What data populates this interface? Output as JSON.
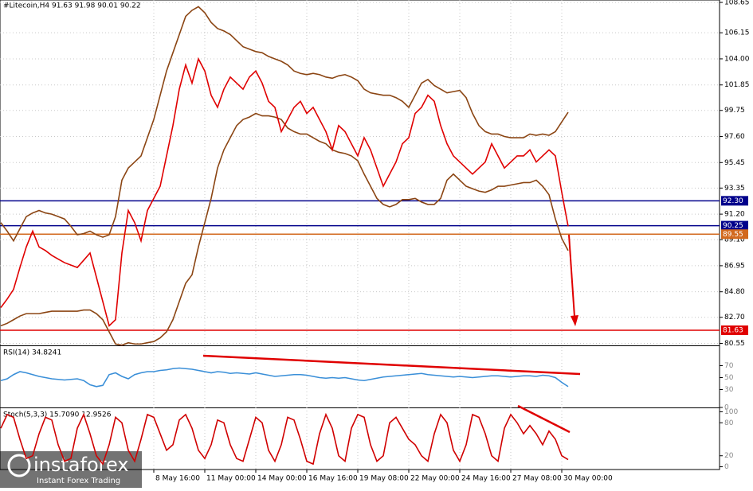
{
  "chart_data": [
    {
      "type": "line",
      "title": "#Litecoin,H4  91.63 91.98 90.01 90.22",
      "categories": [
        null,
        null,
        null,
        null,
        null,
        null,
        null,
        null,
        null,
        null,
        null,
        null,
        null,
        null,
        null,
        null,
        null,
        null,
        null,
        null,
        null,
        null,
        null,
        null,
        "8 May 16:00",
        null,
        null,
        null,
        null,
        null,
        null,
        null,
        "11 May 00:00",
        null,
        null,
        null,
        null,
        null,
        null,
        null,
        "14 May 00:00",
        null,
        null,
        null,
        null,
        null,
        null,
        null,
        "16 May 16:00",
        null,
        null,
        null,
        null,
        null,
        null,
        null,
        "19 May 08:00",
        null,
        null,
        null,
        null,
        null,
        null,
        null,
        "22 May 00:00",
        null,
        null,
        null,
        null,
        null,
        null,
        null,
        "24 May 16:00",
        null,
        null,
        null,
        null,
        null,
        null,
        null,
        "27 May 08:00",
        null,
        null,
        null,
        null,
        null,
        null,
        null,
        "30 May 00:00",
        null
      ],
      "series": [
        {
          "color": "#8b4513",
          "values": [
            90.5,
            89.8,
            89,
            90,
            91,
            91.3,
            91.5,
            91.3,
            91.2,
            91,
            90.8,
            90.2,
            89.5,
            89.6,
            89.8,
            89.5,
            89.3,
            89.5,
            91,
            94,
            95,
            95.5,
            96,
            97.5,
            99,
            101,
            103,
            104.5,
            106,
            107.5,
            108,
            108.3,
            107.8,
            107,
            106.5,
            106.3,
            106,
            105.5,
            105,
            104.8,
            104.6,
            104.5,
            104.2,
            104,
            103.8,
            103.5,
            103,
            102.8,
            102.7,
            102.8,
            102.7,
            102.5,
            102.4,
            102.6,
            102.7,
            102.5,
            102.2,
            101.5,
            101.2,
            101.1,
            101,
            101,
            100.8,
            100.5,
            100,
            101,
            102,
            102.3,
            101.8,
            101.5,
            101.2,
            101.3,
            101.4,
            100.8,
            99.5,
            98.5,
            98,
            97.8,
            97.8,
            97.6,
            97.5,
            97.5,
            97.5,
            97.8,
            97.7,
            97.8,
            97.7,
            98,
            98.8,
            99.6
          ]
        },
        {
          "color": "#8b4513",
          "values": [
            82,
            82.2,
            82.5,
            82.8,
            83,
            83,
            83,
            83.1,
            83.2,
            83.2,
            83.2,
            83.2,
            83.2,
            83.3,
            83.3,
            83,
            82.5,
            81.5,
            80.5,
            80.4,
            80.6,
            80.5,
            80.5,
            80.6,
            80.7,
            81,
            81.5,
            82.5,
            84,
            85.5,
            86.2,
            88.5,
            90.5,
            92.5,
            95,
            96.5,
            97.5,
            98.5,
            99,
            99.2,
            99.5,
            99.3,
            99.3,
            99.2,
            99,
            98.3,
            98,
            97.8,
            97.8,
            97.5,
            97.2,
            97,
            96.5,
            96.3,
            96.2,
            96,
            95.6,
            94.5,
            93.5,
            92.5,
            92,
            91.8,
            92,
            92.4,
            92.4,
            92.5,
            92.2,
            92,
            92,
            92.5,
            94,
            94.5,
            94,
            93.5,
            93.3,
            93.1,
            93,
            93.2,
            93.5,
            93.5,
            93.6,
            93.7,
            93.8,
            93.8,
            94,
            93.5,
            92.8,
            90.8,
            89.2,
            88.2
          ]
        },
        {
          "color": "#e00000",
          "values": [
            83.5,
            84.2,
            85,
            86.8,
            88.5,
            89.8,
            88.5,
            88.2,
            87.8,
            87.5,
            87.2,
            87,
            86.8,
            87.4,
            88,
            86,
            84,
            82,
            82.5,
            88,
            91.5,
            90.5,
            89,
            91.5,
            92.5,
            93.5,
            96,
            98.5,
            101.5,
            103.5,
            102,
            104,
            103,
            101,
            100,
            101.5,
            102.5,
            102,
            101.5,
            102.5,
            103,
            102,
            100.5,
            100,
            98,
            99,
            100,
            100.5,
            99.5,
            100,
            99,
            98,
            96.5,
            98.5,
            98,
            97,
            96,
            97.5,
            96.5,
            95,
            93.5,
            94.5,
            95.5,
            97,
            97.5,
            99.5,
            100,
            101,
            100.5,
            98.5,
            97,
            96,
            95.5,
            95,
            94.5,
            95,
            95.5,
            97,
            96,
            95,
            95.5,
            96,
            96,
            96.5,
            95.5,
            96,
            96.5,
            96,
            93,
            90.2
          ]
        }
      ],
      "ylim": [
        80.45,
        108.85
      ],
      "yticks": [
        108.65,
        106.15,
        {
          "value": 104,
          "label": "104.00"
        },
        101.85,
        99.75,
        {
          "value": 97.6,
          "label": "97.60"
        },
        95.45,
        93.35,
        {
          "value": 91.2,
          "label": "91.20"
        },
        {
          "value": 89.1,
          "label": "89.10"
        },
        86.95,
        {
          "value": 84.8,
          "label": "84.80"
        },
        {
          "value": 82.7,
          "label": "82.70"
        },
        80.55
      ],
      "levels": [
        {
          "value": 92.3,
          "label": "92.30",
          "color": "#00008b"
        },
        {
          "value": 90.25,
          "color": "#00008b"
        },
        {
          "value": 89.55,
          "color": "#d2691e"
        },
        {
          "value": 81.63,
          "color": "#e00000"
        }
      ],
      "grid": true
    },
    {
      "type": "line",
      "title": "RSI(14) 34.8241",
      "series": [
        {
          "color": "#3a8fd8",
          "values": [
            45,
            48,
            55,
            60,
            58,
            55,
            52,
            50,
            48,
            47,
            46,
            47,
            48,
            45,
            38,
            35,
            37,
            55,
            58,
            52,
            48,
            55,
            58,
            60,
            60,
            62,
            63,
            65,
            66,
            65,
            64,
            62,
            60,
            58,
            60,
            59,
            57,
            58,
            57,
            56,
            58,
            56,
            54,
            52,
            53,
            54,
            55,
            55,
            54,
            52,
            50,
            49,
            50,
            49,
            50,
            48,
            46,
            45,
            47,
            49,
            51,
            52,
            53,
            54,
            55,
            56,
            57,
            55,
            54,
            53,
            52,
            51,
            52,
            51,
            50,
            51,
            52,
            53,
            53,
            52,
            51,
            52,
            53,
            53,
            52,
            54,
            53,
            50,
            42,
            35
          ]
        }
      ],
      "ylim": [
        0,
        100
      ],
      "yticks": [
        70,
        50,
        30,
        0
      ]
    },
    {
      "type": "line",
      "title": "Stoch(5,3,3) 15.7090 12.9526",
      "series": [
        {
          "color": "#d00000",
          "values": [
            70,
            95,
            90,
            50,
            15,
            20,
            60,
            90,
            85,
            40,
            10,
            15,
            70,
            95,
            60,
            20,
            5,
            40,
            90,
            80,
            30,
            10,
            50,
            95,
            90,
            60,
            30,
            40,
            85,
            95,
            70,
            30,
            15,
            40,
            85,
            80,
            40,
            15,
            10,
            50,
            90,
            80,
            30,
            10,
            40,
            90,
            85,
            50,
            10,
            5,
            60,
            95,
            70,
            20,
            10,
            70,
            95,
            90,
            40,
            10,
            20,
            80,
            90,
            70,
            50,
            40,
            20,
            10,
            60,
            95,
            80,
            30,
            10,
            40,
            95,
            90,
            60,
            20,
            10,
            70,
            95,
            80,
            60,
            75,
            60,
            40,
            65,
            50,
            20,
            13
          ]
        }
      ],
      "ylim": [
        -5,
        105
      ],
      "yticks": [
        100,
        80,
        20,
        0
      ]
    }
  ],
  "watermark": {
    "brand": "instaforex",
    "tagline": "Instant Forex Trading"
  }
}
